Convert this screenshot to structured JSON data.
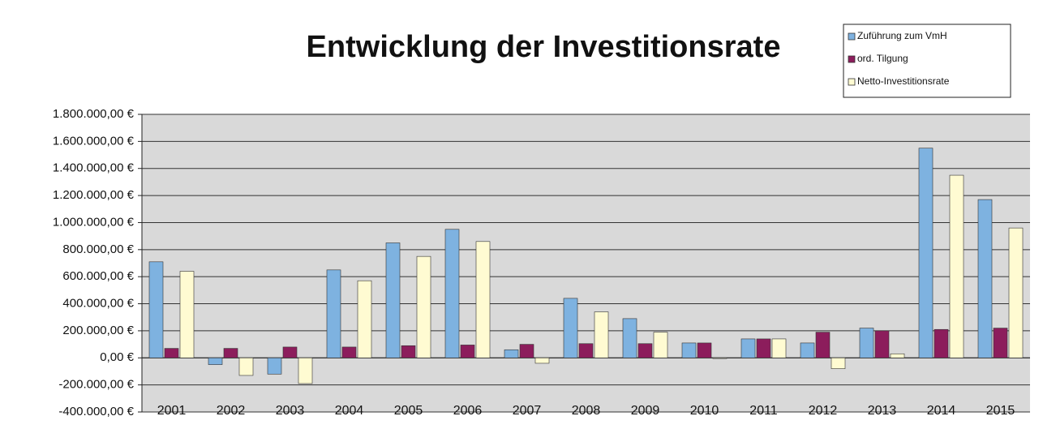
{
  "chart_data": {
    "type": "bar",
    "title": "Entwicklung der Investitionsrate",
    "categories": [
      "2001",
      "2002",
      "2003",
      "2004",
      "2005",
      "2006",
      "2007",
      "2008",
      "2009",
      "2010",
      "2011",
      "2012",
      "2013",
      "2014",
      "2015"
    ],
    "series": [
      {
        "name": "Zuführung zum VmH",
        "color": "#7eb2e0",
        "values": [
          710000,
          -50000,
          -120000,
          650000,
          850000,
          950000,
          60000,
          440000,
          290000,
          110000,
          140000,
          110000,
          220000,
          1550000,
          1170000
        ]
      },
      {
        "name": "ord. Tilgung",
        "color": "#8c1d5c",
        "values": [
          70000,
          70000,
          80000,
          80000,
          90000,
          95000,
          100000,
          105000,
          105000,
          110000,
          140000,
          190000,
          200000,
          210000,
          220000
        ]
      },
      {
        "name": "Netto-Investitionsrate",
        "color": "#fffbd2",
        "values": [
          640000,
          -130000,
          -190000,
          570000,
          750000,
          860000,
          -40000,
          340000,
          190000,
          -5000,
          140000,
          -80000,
          30000,
          1350000,
          960000
        ]
      }
    ],
    "ylim": [
      -400000,
      1800000
    ],
    "yticks": [
      {
        "value": -400000,
        "label": "-400.000,00 €"
      },
      {
        "value": -200000,
        "label": "-200.000,00 €"
      },
      {
        "value": 0,
        "label": "0,00 €"
      },
      {
        "value": 200000,
        "label": "200.000,00 €"
      },
      {
        "value": 400000,
        "label": "400.000,00 €"
      },
      {
        "value": 600000,
        "label": "600.000,00 €"
      },
      {
        "value": 800000,
        "label": "800.000,00 €"
      },
      {
        "value": 1000000,
        "label": "1.000.000,00 €"
      },
      {
        "value": 1200000,
        "label": "1.200.000,00 €"
      },
      {
        "value": 1400000,
        "label": "1.400.000,00 €"
      },
      {
        "value": 1600000,
        "label": "1.600.000,00 €"
      },
      {
        "value": 1800000,
        "label": "1.800.000,00 €"
      }
    ],
    "grid": true,
    "legend": "top-right"
  }
}
